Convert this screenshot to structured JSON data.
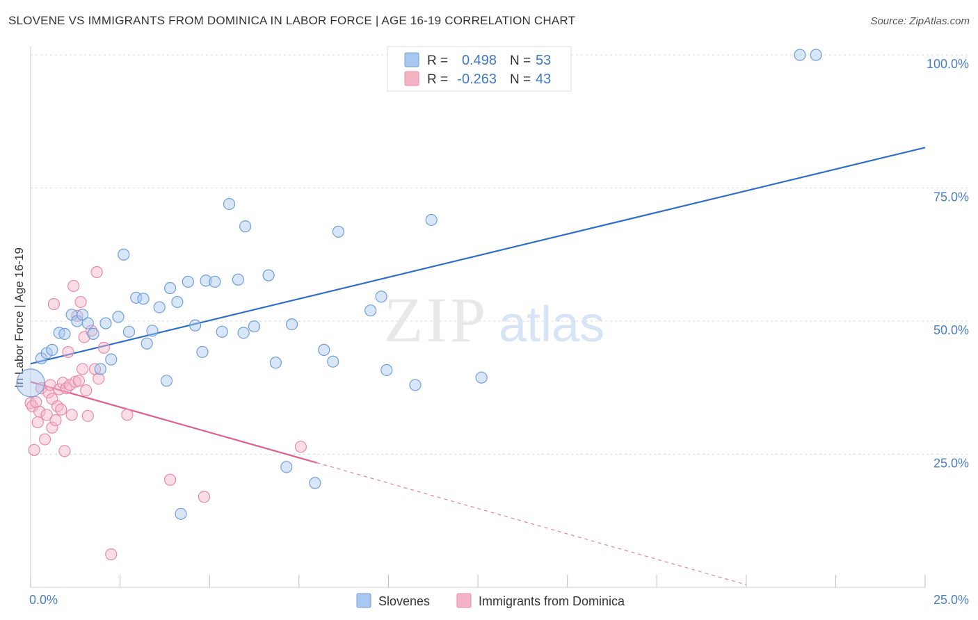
{
  "header": {
    "title": "SLOVENE VS IMMIGRANTS FROM DOMINICA IN LABOR FORCE | AGE 16-19 CORRELATION CHART",
    "source": "Source: ZipAtlas.com"
  },
  "watermark": {
    "zip": "ZIP",
    "atlas": "atlas"
  },
  "stats": {
    "r_label": "R =",
    "n_label": "N =",
    "rows": [
      {
        "r": "0.498",
        "n": "53",
        "color": "#a9c8f0"
      },
      {
        "r": "-0.263",
        "n": "43",
        "color": "#f5b3c6"
      }
    ]
  },
  "legend": {
    "items": [
      {
        "label": "Slovenes",
        "color": "#a9c8f0"
      },
      {
        "label": "Immigrants from Dominica",
        "color": "#f5b3c6"
      }
    ]
  },
  "colors": {
    "blue_fill": "#a9c8f0",
    "blue_stroke": "#6f9fd8",
    "blue_line": "#2f6fcc",
    "pink_fill": "#f5b3c6",
    "pink_stroke": "#e98aa8",
    "pink_line": "#e0608a",
    "grid": "#d9d9d9",
    "tick_text": "#4a7fc5"
  },
  "chart_data": {
    "type": "scatter",
    "title": "SLOVENE VS IMMIGRANTS FROM DOMINICA IN LABOR FORCE | AGE 16-19 CORRELATION CHART",
    "xlabel": "",
    "ylabel": "In Labor Force | Age 16-19",
    "xlim": [
      0,
      25
    ],
    "ylim": [
      0,
      105
    ],
    "x_tick_labels": [
      "0.0%",
      "25.0%"
    ],
    "y_ticks": [
      25,
      50,
      75,
      100
    ],
    "y_tick_labels": [
      "25.0%",
      "50.0%",
      "75.0%",
      "100.0%"
    ],
    "grid": true,
    "legend_position": "bottom",
    "series": [
      {
        "name": "Slovenes",
        "r": 0.498,
        "n": 53,
        "trend": {
          "x": [
            0,
            25
          ],
          "y": [
            42.0,
            82.6
          ]
        },
        "points": [
          {
            "x": 0.0,
            "y": 38.4,
            "big": true
          },
          {
            "x": 0.3,
            "y": 43.0
          },
          {
            "x": 0.45,
            "y": 44.0
          },
          {
            "x": 0.6,
            "y": 44.6
          },
          {
            "x": 0.8,
            "y": 47.8
          },
          {
            "x": 0.95,
            "y": 47.6
          },
          {
            "x": 1.15,
            "y": 51.2
          },
          {
            "x": 1.3,
            "y": 50.0
          },
          {
            "x": 1.45,
            "y": 51.2
          },
          {
            "x": 1.6,
            "y": 49.6
          },
          {
            "x": 1.75,
            "y": 47.6
          },
          {
            "x": 1.95,
            "y": 41.0
          },
          {
            "x": 2.1,
            "y": 49.6
          },
          {
            "x": 2.25,
            "y": 42.8
          },
          {
            "x": 2.45,
            "y": 50.8
          },
          {
            "x": 2.6,
            "y": 62.5
          },
          {
            "x": 2.75,
            "y": 48.0
          },
          {
            "x": 2.95,
            "y": 54.4
          },
          {
            "x": 3.15,
            "y": 54.2
          },
          {
            "x": 3.25,
            "y": 45.8
          },
          {
            "x": 3.4,
            "y": 48.2
          },
          {
            "x": 3.6,
            "y": 52.6
          },
          {
            "x": 3.8,
            "y": 38.8
          },
          {
            "x": 3.9,
            "y": 56.2
          },
          {
            "x": 4.1,
            "y": 53.6
          },
          {
            "x": 4.2,
            "y": 13.8
          },
          {
            "x": 4.4,
            "y": 57.4
          },
          {
            "x": 4.6,
            "y": 49.2
          },
          {
            "x": 4.8,
            "y": 44.2
          },
          {
            "x": 4.9,
            "y": 57.6
          },
          {
            "x": 5.15,
            "y": 57.4
          },
          {
            "x": 5.35,
            "y": 48.0
          },
          {
            "x": 5.55,
            "y": 72.0
          },
          {
            "x": 5.8,
            "y": 57.8
          },
          {
            "x": 6.0,
            "y": 67.8
          },
          {
            "x": 5.95,
            "y": 47.8
          },
          {
            "x": 6.25,
            "y": 49.0
          },
          {
            "x": 6.65,
            "y": 58.6
          },
          {
            "x": 6.85,
            "y": 42.2
          },
          {
            "x": 7.15,
            "y": 22.6
          },
          {
            "x": 7.3,
            "y": 49.4
          },
          {
            "x": 7.95,
            "y": 19.6
          },
          {
            "x": 8.2,
            "y": 44.6
          },
          {
            "x": 8.45,
            "y": 42.4
          },
          {
            "x": 8.6,
            "y": 66.8
          },
          {
            "x": 9.5,
            "y": 52.0
          },
          {
            "x": 9.8,
            "y": 54.6
          },
          {
            "x": 9.95,
            "y": 40.8
          },
          {
            "x": 10.75,
            "y": 38.0
          },
          {
            "x": 11.2,
            "y": 69.0
          },
          {
            "x": 12.6,
            "y": 39.4
          },
          {
            "x": 21.5,
            "y": 100.0
          },
          {
            "x": 21.95,
            "y": 100.0
          }
        ]
      },
      {
        "name": "Immigrants from Dominica",
        "r": -0.263,
        "n": 43,
        "trend": {
          "x": [
            0,
            8.0
          ],
          "y": [
            38.6,
            23.4
          ]
        },
        "trend_dashed": {
          "x": [
            8.0,
            20.0
          ],
          "y": [
            23.4,
            0.5
          ]
        },
        "points": [
          {
            "x": 0.0,
            "y": 34.6
          },
          {
            "x": 0.05,
            "y": 34.0
          },
          {
            "x": 0.1,
            "y": 25.8
          },
          {
            "x": 0.15,
            "y": 34.8
          },
          {
            "x": 0.2,
            "y": 31.0
          },
          {
            "x": 0.25,
            "y": 33.0
          },
          {
            "x": 0.3,
            "y": 37.4
          },
          {
            "x": 0.4,
            "y": 27.8
          },
          {
            "x": 0.45,
            "y": 32.4
          },
          {
            "x": 0.5,
            "y": 36.6
          },
          {
            "x": 0.55,
            "y": 38.0
          },
          {
            "x": 0.6,
            "y": 30.0
          },
          {
            "x": 0.6,
            "y": 35.4
          },
          {
            "x": 0.65,
            "y": 53.2
          },
          {
            "x": 0.7,
            "y": 31.4
          },
          {
            "x": 0.75,
            "y": 34.0
          },
          {
            "x": 0.8,
            "y": 37.2
          },
          {
            "x": 0.85,
            "y": 33.4
          },
          {
            "x": 0.9,
            "y": 38.4
          },
          {
            "x": 0.95,
            "y": 25.6
          },
          {
            "x": 1.0,
            "y": 37.4
          },
          {
            "x": 1.05,
            "y": 44.2
          },
          {
            "x": 1.1,
            "y": 38.0
          },
          {
            "x": 1.15,
            "y": 32.4
          },
          {
            "x": 1.2,
            "y": 56.6
          },
          {
            "x": 1.25,
            "y": 38.6
          },
          {
            "x": 1.3,
            "y": 51.0
          },
          {
            "x": 1.35,
            "y": 38.8
          },
          {
            "x": 1.4,
            "y": 53.6
          },
          {
            "x": 1.45,
            "y": 41.0
          },
          {
            "x": 1.5,
            "y": 47.0
          },
          {
            "x": 1.55,
            "y": 37.0
          },
          {
            "x": 1.6,
            "y": 32.2
          },
          {
            "x": 1.7,
            "y": 48.2
          },
          {
            "x": 1.8,
            "y": 41.0
          },
          {
            "x": 1.85,
            "y": 59.2
          },
          {
            "x": 1.9,
            "y": 39.2
          },
          {
            "x": 2.05,
            "y": 45.0
          },
          {
            "x": 2.25,
            "y": 6.2
          },
          {
            "x": 2.7,
            "y": 32.4
          },
          {
            "x": 3.9,
            "y": 20.2
          },
          {
            "x": 4.85,
            "y": 17.0
          },
          {
            "x": 7.55,
            "y": 26.4
          }
        ]
      }
    ]
  }
}
